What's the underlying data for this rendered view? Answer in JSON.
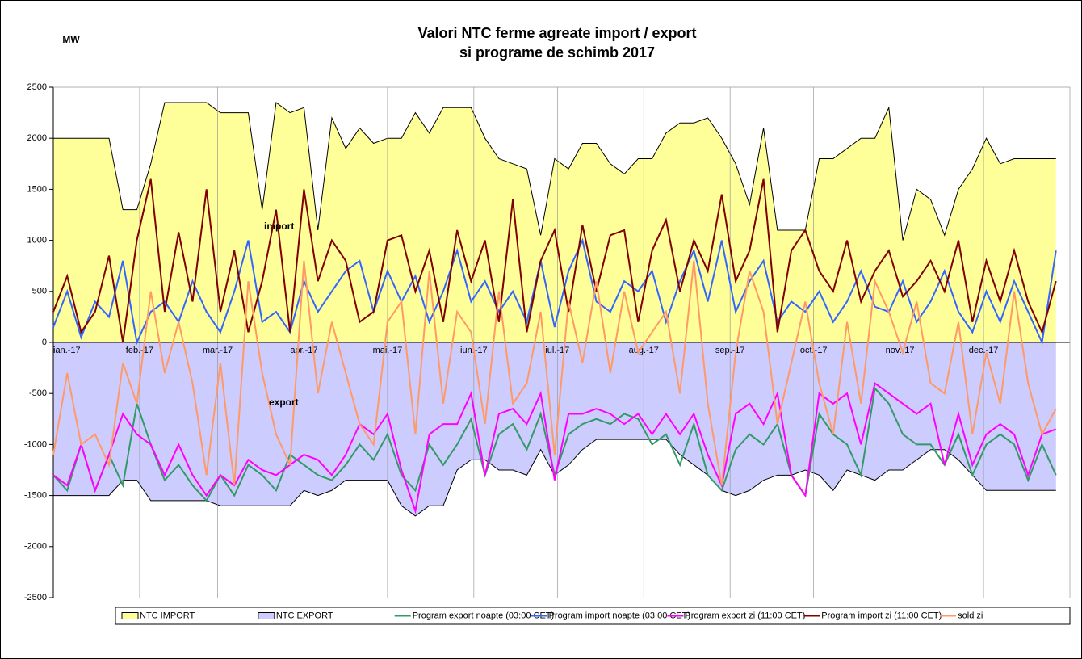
{
  "chart_data": {
    "type": "area-line",
    "title": [
      "Valori NTC ferme agreate import / export",
      "si programe de schimb 2017"
    ],
    "y_label": "MW",
    "annotations": [
      "import",
      "export"
    ],
    "x": [
      0,
      5,
      10,
      15,
      20,
      25,
      30,
      35,
      40,
      45,
      50,
      55,
      60,
      65,
      70,
      75,
      80,
      85,
      90,
      95,
      100,
      105,
      110,
      115,
      120,
      125,
      130,
      135,
      140,
      145,
      150,
      155,
      160,
      165,
      170,
      175,
      180,
      185,
      190,
      195,
      200,
      205,
      210,
      215,
      220,
      225,
      230,
      235,
      240,
      245,
      250,
      255,
      260,
      265,
      270,
      275,
      280,
      285,
      290,
      295,
      300,
      305,
      310,
      315,
      320,
      325,
      330,
      335,
      340,
      345,
      350,
      355,
      360
    ],
    "xlim": [
      0,
      365
    ],
    "xticks": [
      {
        "value": 0,
        "label": "ian.-17"
      },
      {
        "value": 31,
        "label": "feb.-17"
      },
      {
        "value": 59,
        "label": "mar.-17"
      },
      {
        "value": 90,
        "label": "apr.-17"
      },
      {
        "value": 120,
        "label": "mai.-17"
      },
      {
        "value": 151,
        "label": "iun.-17"
      },
      {
        "value": 181,
        "label": "iul.-17"
      },
      {
        "value": 212,
        "label": "aug.-17"
      },
      {
        "value": 243,
        "label": "sep.-17"
      },
      {
        "value": 273,
        "label": "oct.-17"
      },
      {
        "value": 304,
        "label": "nov.-17"
      },
      {
        "value": 334,
        "label": "dec.-17"
      }
    ],
    "ylim": [
      -2500,
      2500
    ],
    "yticks": [
      -2500,
      -2000,
      -1500,
      -1000,
      -500,
      0,
      500,
      1000,
      1500,
      2000,
      2500
    ],
    "grid": "x",
    "legend": "bottom",
    "series": [
      {
        "name": "NTC IMPORT",
        "kind": "area",
        "color": "#ffff99",
        "values": [
          2000,
          2000,
          2000,
          2000,
          2000,
          1300,
          1300,
          1750,
          2350,
          2350,
          2350,
          2350,
          2250,
          2250,
          2250,
          1300,
          2350,
          2250,
          2300,
          1100,
          2200,
          1900,
          2100,
          1950,
          2000,
          2000,
          2250,
          2050,
          2300,
          2300,
          2300,
          2000,
          1800,
          1750,
          1700,
          1050,
          1800,
          1700,
          1950,
          1950,
          1750,
          1650,
          1800,
          1800,
          2050,
          2150,
          2150,
          2200,
          2000,
          1750,
          1350,
          2100,
          1100,
          1100,
          1100,
          1800,
          1800,
          1900,
          2000,
          2000,
          2300,
          1000,
          1500,
          1400,
          1050,
          1500,
          1700,
          2000,
          1750,
          1800,
          1800,
          1800,
          1800
        ]
      },
      {
        "name": "NTC EXPORT",
        "kind": "area",
        "color": "#ccccff",
        "values": [
          -1500,
          -1500,
          -1500,
          -1500,
          -1500,
          -1350,
          -1350,
          -1550,
          -1550,
          -1550,
          -1550,
          -1550,
          -1600,
          -1600,
          -1600,
          -1600,
          -1600,
          -1600,
          -1450,
          -1500,
          -1450,
          -1350,
          -1350,
          -1350,
          -1350,
          -1600,
          -1700,
          -1600,
          -1600,
          -1250,
          -1150,
          -1150,
          -1250,
          -1250,
          -1300,
          -1050,
          -1300,
          -1200,
          -1050,
          -950,
          -950,
          -950,
          -950,
          -950,
          -950,
          -1100,
          -1200,
          -1300,
          -1450,
          -1500,
          -1450,
          -1350,
          -1300,
          -1300,
          -1250,
          -1300,
          -1450,
          -1250,
          -1300,
          -1350,
          -1250,
          -1250,
          -1150,
          -1050,
          -1050,
          -1150,
          -1300,
          -1450,
          -1450,
          -1450,
          -1450,
          -1450,
          -1450
        ]
      },
      {
        "name": "Program export noapte (03:00 CET)",
        "kind": "line",
        "color": "#339966",
        "values": [
          -1300,
          -1450,
          -1000,
          -1450,
          -1100,
          -1400,
          -600,
          -1000,
          -1350,
          -1200,
          -1400,
          -1550,
          -1300,
          -1500,
          -1200,
          -1300,
          -1450,
          -1100,
          -1200,
          -1300,
          -1350,
          -1200,
          -1000,
          -1150,
          -900,
          -1300,
          -1450,
          -1000,
          -1200,
          -1000,
          -750,
          -1300,
          -900,
          -800,
          -1050,
          -700,
          -1300,
          -900,
          -800,
          -750,
          -800,
          -700,
          -750,
          -1000,
          -900,
          -1200,
          -800,
          -1300,
          -1450,
          -1050,
          -900,
          -1000,
          -800,
          -1300,
          -1500,
          -700,
          -900,
          -1000,
          -1300,
          -450,
          -600,
          -900,
          -1000,
          -1000,
          -1200,
          -900,
          -1300,
          -1000,
          -900,
          -1000,
          -1350,
          -1000,
          -1300
        ]
      },
      {
        "name": "Program import noapte (03:00 CET)",
        "kind": "line",
        "color": "#3366ff",
        "values": [
          150,
          500,
          50,
          400,
          250,
          800,
          0,
          300,
          400,
          200,
          600,
          300,
          100,
          500,
          1000,
          200,
          300,
          100,
          600,
          300,
          500,
          700,
          800,
          300,
          700,
          400,
          650,
          200,
          500,
          900,
          400,
          600,
          300,
          500,
          200,
          800,
          150,
          700,
          1000,
          400,
          300,
          600,
          500,
          700,
          200,
          600,
          900,
          400,
          1000,
          300,
          600,
          800,
          200,
          400,
          300,
          500,
          200,
          400,
          700,
          350,
          300,
          600,
          200,
          400,
          700,
          300,
          100,
          500,
          200,
          600,
          300,
          0,
          900
        ]
      },
      {
        "name": "Program export zi (11:00 CET)",
        "kind": "line",
        "color": "#ff00ff",
        "values": [
          -1300,
          -1400,
          -1000,
          -1450,
          -1100,
          -700,
          -900,
          -1000,
          -1300,
          -1000,
          -1300,
          -1500,
          -1300,
          -1400,
          -1150,
          -1250,
          -1300,
          -1200,
          -1100,
          -1150,
          -1300,
          -1100,
          -800,
          -900,
          -700,
          -1250,
          -1650,
          -900,
          -800,
          -800,
          -500,
          -1300,
          -700,
          -650,
          -800,
          -500,
          -1350,
          -700,
          -700,
          -650,
          -700,
          -800,
          -700,
          -900,
          -700,
          -900,
          -700,
          -1100,
          -1400,
          -700,
          -600,
          -800,
          -500,
          -1300,
          -1500,
          -500,
          -600,
          -500,
          -1000,
          -400,
          -500,
          -600,
          -700,
          -600,
          -1200,
          -700,
          -1200,
          -900,
          -800,
          -900,
          -1300,
          -900,
          -850
        ]
      },
      {
        "name": "Program import zi (11:00 CET)",
        "kind": "line",
        "color": "#800000",
        "values": [
          300,
          650,
          100,
          300,
          850,
          0,
          1000,
          1600,
          300,
          1080,
          400,
          1500,
          300,
          900,
          100,
          600,
          1300,
          100,
          1500,
          600,
          1000,
          800,
          200,
          300,
          1000,
          1050,
          500,
          900,
          200,
          1100,
          600,
          1000,
          200,
          1400,
          100,
          800,
          1100,
          300,
          1150,
          500,
          1050,
          1100,
          200,
          900,
          1200,
          500,
          1000,
          700,
          1450,
          600,
          900,
          1600,
          100,
          900,
          1100,
          700,
          500,
          1000,
          400,
          700,
          900,
          450,
          600,
          800,
          500,
          1000,
          200,
          800,
          400,
          900,
          400,
          100,
          600
        ]
      },
      {
        "name": "sold zi",
        "kind": "line",
        "color": "#ff9966",
        "values": [
          -1100,
          -300,
          -1000,
          -900,
          -1200,
          -200,
          -600,
          500,
          -300,
          200,
          -400,
          -1300,
          -200,
          -1400,
          600,
          -300,
          -900,
          -1200,
          800,
          -500,
          200,
          -300,
          -800,
          -1000,
          200,
          400,
          -900,
          700,
          -600,
          300,
          100,
          -800,
          500,
          -600,
          -400,
          300,
          -1100,
          400,
          -200,
          600,
          -300,
          500,
          -100,
          100,
          300,
          -500,
          800,
          -600,
          -1400,
          -100,
          700,
          300,
          -800,
          -200,
          400,
          -400,
          -900,
          200,
          -600,
          600,
          300,
          -100,
          400,
          -400,
          -500,
          200,
          -900,
          -100,
          -600,
          500,
          -400,
          -900,
          -650
        ]
      }
    ]
  }
}
